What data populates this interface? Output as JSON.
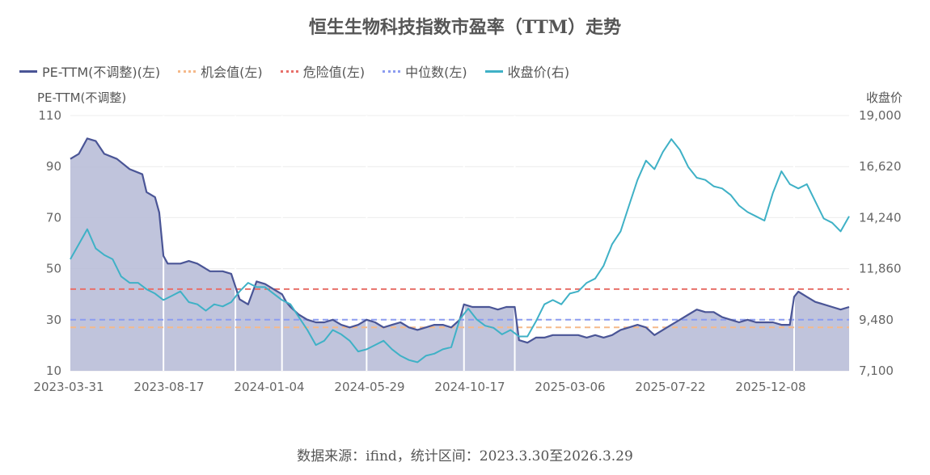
{
  "title": "恒生生物科技指数市盈率（TTM）走势",
  "footer": "数据来源：ifind，统计区间：2023.3.30至2026.3.29",
  "legend": [
    {
      "label": "PE-TTM(不调整)(左)",
      "color": "#4a5596",
      "style": "solid"
    },
    {
      "label": "机会值(左)",
      "color": "#f5b98a",
      "style": "dotted"
    },
    {
      "label": "危险值(左)",
      "color": "#e8706a",
      "style": "dotted"
    },
    {
      "label": "中位数(左)",
      "color": "#8c9cf0",
      "style": "dotted"
    },
    {
      "label": "收盘价(右)",
      "color": "#3fb1c6",
      "style": "solid"
    }
  ],
  "chart_data": {
    "type": "line",
    "left_axis": {
      "title": "PE-TTM(不调整)",
      "ticks": [
        "110",
        "90",
        "70",
        "50",
        "30",
        "10"
      ],
      "range": [
        10,
        110
      ]
    },
    "right_axis": {
      "title": "收盘价",
      "ticks": [
        "19,000",
        "16,620",
        "14,240",
        "11,860",
        "9,480",
        "7,100"
      ],
      "range": [
        7100,
        19000
      ]
    },
    "x_ticks": [
      "2023-03-31",
      "2023-08-17",
      "2024-01-04",
      "2024-05-29",
      "2024-10-17",
      "2025-03-06",
      "2025-07-22",
      "2025-12-08"
    ],
    "reference_lines": {
      "opportunity": 27,
      "danger": 42,
      "median": 30
    },
    "series": [
      {
        "name": "PE-TTM(不调整)(左)",
        "color": "#4a5596",
        "fill": "#b9bed8",
        "axis": "left",
        "points": [
          [
            0,
            93
          ],
          [
            2,
            95
          ],
          [
            4,
            101
          ],
          [
            6,
            100
          ],
          [
            8,
            95
          ],
          [
            11,
            93
          ],
          [
            14,
            89
          ],
          [
            17,
            87
          ],
          [
            18,
            80
          ],
          [
            20,
            78
          ],
          [
            21,
            72
          ],
          [
            22,
            55
          ],
          [
            23,
            52
          ],
          [
            26,
            52
          ],
          [
            28,
            53
          ],
          [
            30,
            52
          ],
          [
            33,
            49
          ],
          [
            36,
            49
          ],
          [
            38,
            48
          ],
          [
            39,
            43
          ],
          [
            40,
            38
          ],
          [
            42,
            36
          ],
          [
            44,
            45
          ],
          [
            46,
            44
          ],
          [
            48,
            42
          ],
          [
            50,
            40
          ],
          [
            51,
            37
          ],
          [
            52,
            35
          ],
          [
            54,
            32
          ],
          [
            56,
            30
          ],
          [
            58,
            29
          ],
          [
            60,
            29
          ],
          [
            62,
            30
          ],
          [
            64,
            28
          ],
          [
            66,
            27
          ],
          [
            68,
            28
          ],
          [
            70,
            30
          ],
          [
            72,
            29
          ],
          [
            74,
            27
          ],
          [
            76,
            28
          ],
          [
            78,
            29
          ],
          [
            80,
            27
          ],
          [
            82,
            26
          ],
          [
            84,
            27
          ],
          [
            86,
            28
          ],
          [
            88,
            28
          ],
          [
            90,
            27
          ],
          [
            92,
            30
          ],
          [
            93,
            36
          ],
          [
            95,
            35
          ],
          [
            97,
            35
          ],
          [
            99,
            35
          ],
          [
            101,
            34
          ],
          [
            103,
            35
          ],
          [
            105,
            35
          ],
          [
            106,
            22
          ],
          [
            108,
            21
          ],
          [
            110,
            23
          ],
          [
            112,
            23
          ],
          [
            114,
            24
          ],
          [
            116,
            24
          ],
          [
            118,
            24
          ],
          [
            120,
            24
          ],
          [
            122,
            23
          ],
          [
            124,
            24
          ],
          [
            126,
            23
          ],
          [
            128,
            24
          ],
          [
            130,
            26
          ],
          [
            132,
            27
          ],
          [
            134,
            28
          ],
          [
            136,
            27
          ],
          [
            138,
            24
          ],
          [
            140,
            26
          ],
          [
            142,
            28
          ],
          [
            144,
            30
          ],
          [
            146,
            32
          ],
          [
            148,
            34
          ],
          [
            150,
            33
          ],
          [
            152,
            33
          ],
          [
            154,
            31
          ],
          [
            156,
            30
          ],
          [
            158,
            29
          ],
          [
            160,
            30
          ],
          [
            162,
            29
          ],
          [
            164,
            29
          ],
          [
            166,
            29
          ],
          [
            168,
            28
          ],
          [
            170,
            28
          ],
          [
            171,
            39
          ],
          [
            172,
            41
          ],
          [
            174,
            39
          ],
          [
            176,
            37
          ],
          [
            178,
            36
          ],
          [
            180,
            35
          ],
          [
            182,
            34
          ],
          [
            184,
            35
          ]
        ]
      },
      {
        "name": "收盘价(右)",
        "color": "#3fb1c6",
        "axis": "right",
        "points": [
          [
            0,
            12300
          ],
          [
            2,
            13000
          ],
          [
            4,
            13700
          ],
          [
            6,
            12800
          ],
          [
            8,
            12500
          ],
          [
            10,
            12300
          ],
          [
            12,
            11500
          ],
          [
            14,
            11200
          ],
          [
            16,
            11200
          ],
          [
            18,
            10900
          ],
          [
            20,
            10700
          ],
          [
            22,
            10400
          ],
          [
            24,
            10600
          ],
          [
            26,
            10800
          ],
          [
            28,
            10300
          ],
          [
            30,
            10200
          ],
          [
            32,
            9900
          ],
          [
            34,
            10200
          ],
          [
            36,
            10100
          ],
          [
            38,
            10300
          ],
          [
            40,
            10800
          ],
          [
            42,
            11200
          ],
          [
            44,
            11000
          ],
          [
            46,
            11000
          ],
          [
            48,
            10700
          ],
          [
            50,
            10400
          ],
          [
            52,
            10200
          ],
          [
            54,
            9600
          ],
          [
            56,
            9000
          ],
          [
            58,
            8300
          ],
          [
            60,
            8500
          ],
          [
            62,
            9000
          ],
          [
            64,
            8800
          ],
          [
            66,
            8500
          ],
          [
            68,
            8000
          ],
          [
            70,
            8100
          ],
          [
            72,
            8300
          ],
          [
            74,
            8500
          ],
          [
            76,
            8100
          ],
          [
            78,
            7800
          ],
          [
            80,
            7600
          ],
          [
            82,
            7500
          ],
          [
            84,
            7800
          ],
          [
            86,
            7900
          ],
          [
            88,
            8100
          ],
          [
            90,
            8200
          ],
          [
            92,
            9500
          ],
          [
            94,
            10000
          ],
          [
            96,
            9500
          ],
          [
            98,
            9200
          ],
          [
            100,
            9100
          ],
          [
            102,
            8800
          ],
          [
            104,
            9000
          ],
          [
            106,
            8700
          ],
          [
            108,
            8700
          ],
          [
            110,
            9400
          ],
          [
            112,
            10200
          ],
          [
            114,
            10400
          ],
          [
            116,
            10200
          ],
          [
            118,
            10700
          ],
          [
            120,
            10800
          ],
          [
            122,
            11200
          ],
          [
            124,
            11400
          ],
          [
            126,
            12000
          ],
          [
            128,
            13000
          ],
          [
            130,
            13600
          ],
          [
            132,
            14800
          ],
          [
            134,
            16000
          ],
          [
            136,
            16900
          ],
          [
            138,
            16500
          ],
          [
            140,
            17300
          ],
          [
            142,
            17900
          ],
          [
            144,
            17400
          ],
          [
            146,
            16600
          ],
          [
            148,
            16100
          ],
          [
            150,
            16000
          ],
          [
            152,
            15700
          ],
          [
            154,
            15600
          ],
          [
            156,
            15300
          ],
          [
            158,
            14800
          ],
          [
            160,
            14500
          ],
          [
            162,
            14300
          ],
          [
            164,
            14100
          ],
          [
            166,
            15400
          ],
          [
            168,
            16400
          ],
          [
            170,
            15800
          ],
          [
            172,
            15600
          ],
          [
            174,
            15800
          ],
          [
            176,
            15000
          ],
          [
            178,
            14200
          ],
          [
            180,
            14000
          ],
          [
            182,
            13600
          ],
          [
            184,
            14300
          ]
        ]
      }
    ]
  }
}
